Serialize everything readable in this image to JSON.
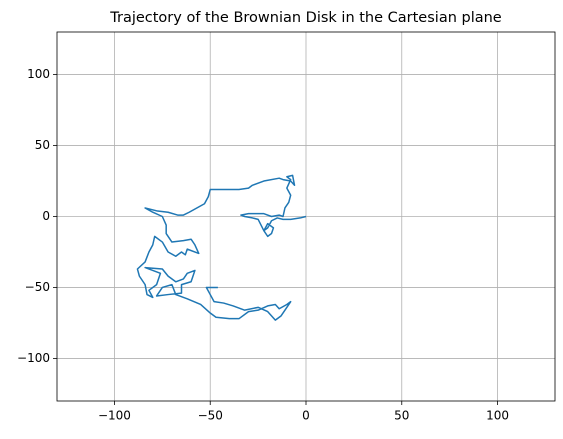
{
  "chart_data": {
    "type": "line",
    "title": "Trajectory of the Brownian Disk in the Cartesian plane",
    "x": [
      0,
      -3,
      -8,
      -12,
      -15,
      -18,
      -20,
      -22,
      -20,
      -17,
      -18,
      -20,
      -22,
      -25,
      -28,
      -32,
      -34,
      -30,
      -22,
      -18,
      -14,
      -12,
      -11,
      -9,
      -8,
      -10,
      -8,
      -10,
      -7,
      -6,
      -8,
      -12,
      -14,
      -22,
      -28,
      -30,
      -35,
      -42,
      -50,
      -51,
      -53,
      -57,
      -61,
      -64,
      -67,
      -72,
      -78,
      -84,
      -80,
      -75,
      -73,
      -73,
      -70,
      -64,
      -60,
      -58,
      -56,
      -62,
      -63,
      -65,
      -68,
      -72,
      -75,
      -79,
      -80,
      -82,
      -84,
      -88,
      -87,
      -84,
      -83,
      -80,
      -82,
      -78,
      -76,
      -80,
      -84,
      -75,
      -72,
      -68,
      -64,
      -62,
      -58,
      -60,
      -65,
      -65,
      -72,
      -78,
      -75,
      -70,
      -68,
      -62,
      -55,
      -50,
      -47,
      -40,
      -35,
      -30,
      -25,
      -20,
      -16,
      -14,
      -10,
      -8,
      -11,
      -13,
      -16,
      -20,
      -25,
      -32,
      -38,
      -43,
      -48,
      -50,
      -52,
      -48,
      -46
    ],
    "values": [
      0,
      -1,
      -2,
      -2,
      -1,
      -3,
      -8,
      -10,
      -5,
      -8,
      -12,
      -14,
      -10,
      -2,
      -1,
      0,
      1,
      2,
      2,
      0,
      1,
      0,
      6,
      10,
      15,
      20,
      26,
      28,
      29,
      22,
      25,
      26,
      27,
      25,
      22,
      20,
      19,
      19,
      19,
      14,
      9,
      6,
      3,
      1,
      1,
      3,
      4,
      6,
      3,
      0,
      -6,
      -12,
      -18,
      -17,
      -16,
      -20,
      -26,
      -23,
      -27,
      -25,
      -28,
      -25,
      -18,
      -14,
      -20,
      -25,
      -32,
      -37,
      -42,
      -48,
      -55,
      -57,
      -52,
      -48,
      -40,
      -38,
      -36,
      -37,
      -42,
      -46,
      -44,
      -40,
      -38,
      -46,
      -48,
      -54,
      -55,
      -56,
      -50,
      -48,
      -55,
      -58,
      -62,
      -68,
      -71,
      -72,
      -72,
      -67,
      -66,
      -63,
      -62,
      -65,
      -62,
      -60,
      -66,
      -70,
      -73,
      -67,
      -64,
      -66,
      -63,
      -61,
      -60,
      -55,
      -50,
      -50,
      -50
    ],
    "color": "#1f77b4",
    "xlim": [
      -130,
      130
    ],
    "ylim": [
      -130,
      130
    ],
    "xticks": [
      {
        "value": -100,
        "label": "−100"
      },
      {
        "value": -50,
        "label": "−50"
      },
      0,
      50,
      100
    ],
    "yticks": [
      {
        "value": -100,
        "label": "−100"
      },
      {
        "value": -50,
        "label": "−50"
      },
      0,
      50,
      100
    ],
    "grid": true
  }
}
